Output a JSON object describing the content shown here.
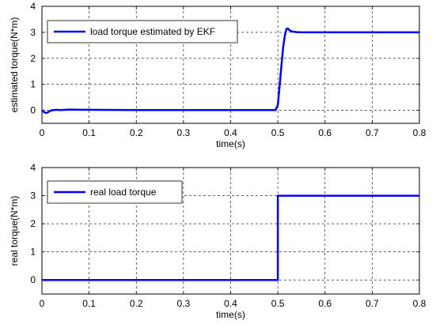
{
  "colors": {
    "series": "#0000ff",
    "axes": "#000000",
    "grid": "#000000",
    "background": "#ffffff"
  },
  "chart_data": [
    {
      "type": "line",
      "xlabel": "time(s)",
      "ylabel": "estimated torque(N*m)",
      "xlim": [
        0,
        0.8
      ],
      "ylim": [
        -0.5,
        4
      ],
      "xticks": [
        0,
        0.1,
        0.2,
        0.3,
        0.4,
        0.5,
        0.6,
        0.7,
        0.8
      ],
      "xtick_labels": [
        "0",
        "0.1",
        "0.2",
        "0.3",
        "0.4",
        "0.5",
        "0.6",
        "0.7",
        "0.8"
      ],
      "yticks": [
        0,
        1,
        2,
        3,
        4
      ],
      "ytick_labels": [
        "0",
        "1",
        "2",
        "3",
        "4"
      ],
      "grid": true,
      "legend_position": "top-left",
      "series": [
        {
          "name": "load torque estimated by EKF",
          "x": [
            0,
            0.005,
            0.01,
            0.015,
            0.02,
            0.03,
            0.04,
            0.05,
            0.06,
            0.08,
            0.1,
            0.2,
            0.3,
            0.4,
            0.495,
            0.5,
            0.503,
            0.507,
            0.511,
            0.515,
            0.518,
            0.521,
            0.525,
            0.53,
            0.54,
            0.55,
            0.6,
            0.7,
            0.8
          ],
          "y": [
            0,
            -0.08,
            -0.1,
            -0.05,
            0,
            0.02,
            0.01,
            0.02,
            0.03,
            0.02,
            0.02,
            0.01,
            0.01,
            0.01,
            0.01,
            0.2,
            0.8,
            1.6,
            2.4,
            2.9,
            3.12,
            3.15,
            3.08,
            3.03,
            3.01,
            3.0,
            3.0,
            3.0,
            3.0
          ]
        }
      ]
    },
    {
      "type": "line",
      "xlabel": "time(s)",
      "ylabel": "real torque(N*m)",
      "xlim": [
        0,
        0.8
      ],
      "ylim": [
        -0.5,
        4
      ],
      "xticks": [
        0,
        0.1,
        0.2,
        0.3,
        0.4,
        0.5,
        0.6,
        0.7,
        0.8
      ],
      "xtick_labels": [
        "0",
        "0.1",
        "0.2",
        "0.3",
        "0.4",
        "0.5",
        "0.6",
        "0.7",
        "0.8"
      ],
      "yticks": [
        0,
        1,
        2,
        3,
        4
      ],
      "ytick_labels": [
        "0",
        "1",
        "2",
        "3",
        "4"
      ],
      "grid": true,
      "legend_position": "top-left",
      "series": [
        {
          "name": "real load torque",
          "x": [
            0,
            0.5,
            0.5,
            0.8
          ],
          "y": [
            0,
            0,
            3,
            3
          ]
        }
      ]
    }
  ]
}
